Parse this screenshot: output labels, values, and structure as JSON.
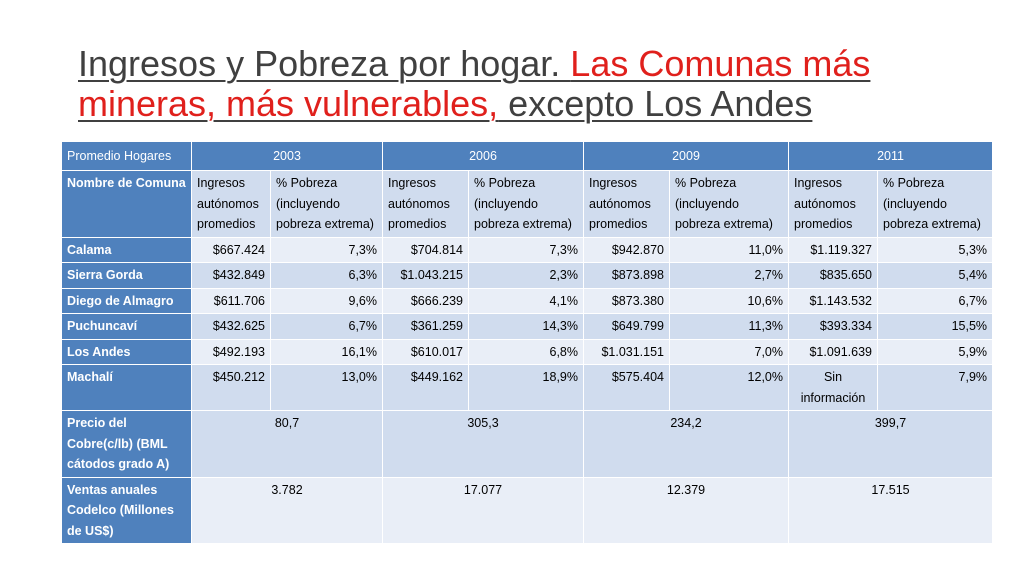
{
  "title": {
    "part1": "Ingresos y Pobreza por hogar. ",
    "part2": "Las Comunas más mineras, más vulnerables,",
    "part3": " excepto Los Andes"
  },
  "table": {
    "header": {
      "corner": "Promedio Hogares",
      "years": [
        "2003",
        "2006",
        "2009",
        "2011"
      ]
    },
    "subheader": {
      "label": "Nombre de Comuna",
      "cols": [
        "Ingresos autónomos promedios",
        "% Pobreza (incluyendo pobreza extrema)",
        "Ingresos autónomos promedios",
        "% Pobreza (incluyendo pobreza extrema)",
        "Ingresos autónomos promedios",
        "% Pobreza (incluyendo pobreza extrema)",
        "Ingresos autónomos promedios",
        "% Pobreza (incluyendo pobreza extrema)"
      ]
    },
    "rows": [
      {
        "name": "Calama",
        "values": [
          "$667.424",
          "7,3%",
          "$704.814",
          "7,3%",
          "$942.870",
          "11,0%",
          "$1.119.327",
          "5,3%"
        ]
      },
      {
        "name": "Sierra Gorda",
        "values": [
          "$432.849",
          "6,3%",
          "$1.043.215",
          "2,3%",
          "$873.898",
          "2,7%",
          "$835.650",
          "5,4%"
        ]
      },
      {
        "name": "Diego de Almagro",
        "values": [
          "$611.706",
          "9,6%",
          "$666.239",
          "4,1%",
          "$873.380",
          "10,6%",
          "$1.143.532",
          "6,7%"
        ]
      },
      {
        "name": "Puchuncaví",
        "values": [
          "$432.625",
          "6,7%",
          "$361.259",
          "14,3%",
          "$649.799",
          "11,3%",
          "$393.334",
          "15,5%"
        ]
      },
      {
        "name": "Los Andes",
        "values": [
          "$492.193",
          "16,1%",
          "$610.017",
          "6,8%",
          "$1.031.151",
          "7,0%",
          "$1.091.639",
          "5,9%"
        ]
      },
      {
        "name": "Machalí",
        "values": [
          "$450.212",
          "13,0%",
          "$449.162",
          "18,9%",
          "$575.404",
          "12,0%",
          "Sin información",
          "7,9%"
        ]
      }
    ],
    "copper": {
      "name": "Precio del Cobre(c/lb) (BML cátodos grado A)",
      "values": [
        "80,7",
        "305,3",
        "234,2",
        "399,7"
      ]
    },
    "sales": {
      "name": "Ventas anuales Codelco (Millones de US$)",
      "values": [
        "3.782",
        "17.077",
        "12.379",
        "17.515"
      ]
    }
  }
}
